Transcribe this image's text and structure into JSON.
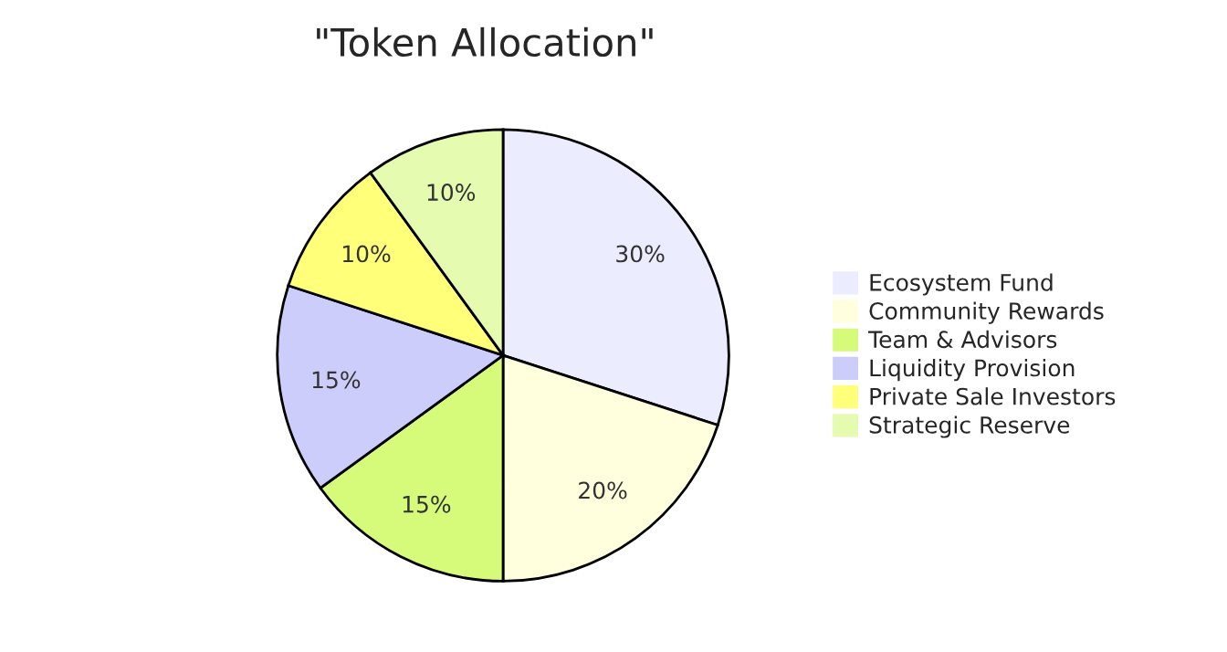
{
  "chart_data": {
    "type": "pie",
    "title": "\"Token Allocation\"",
    "categories": [
      "Ecosystem Fund",
      "Community Rewards",
      "Team & Advisors",
      "Liquidity Provision",
      "Private Sale Investors",
      "Strategic Reserve"
    ],
    "values": [
      30,
      20,
      15,
      15,
      10,
      10
    ],
    "value_labels": [
      "30%",
      "20%",
      "15%",
      "15%",
      "10%",
      "10%"
    ],
    "colors": [
      "#ececff",
      "#ffffde",
      "#d6fb7a",
      "#cdcdfc",
      "#ffff7a",
      "#e4fbb0"
    ],
    "legend": "right"
  }
}
